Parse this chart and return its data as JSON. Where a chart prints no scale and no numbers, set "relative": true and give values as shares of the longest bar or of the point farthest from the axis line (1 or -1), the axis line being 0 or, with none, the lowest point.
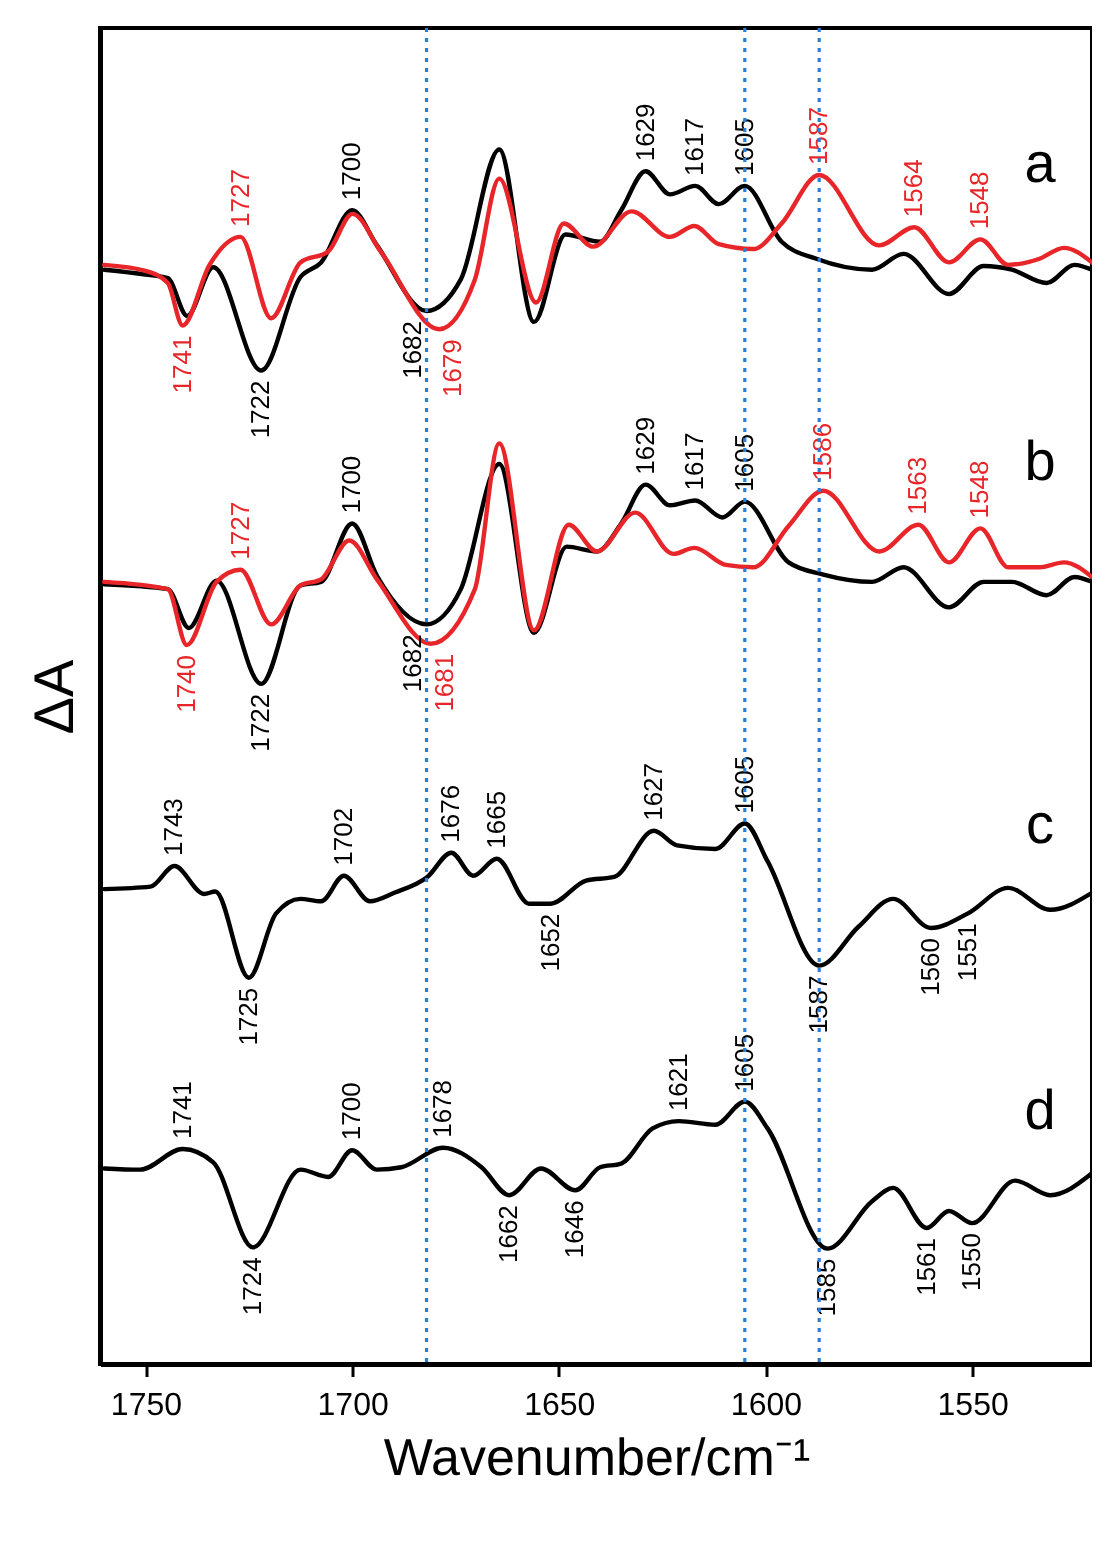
{
  "chart_data": {
    "type": "line",
    "relative": true,
    "xlabel": "Wavenumber/cm⁻¹",
    "ylabel": "ΔA",
    "xlim": [
      1761,
      1521
    ],
    "xticks": [
      1750,
      1700,
      1650,
      1600,
      1550
    ],
    "grid": false,
    "line_style": "solid",
    "series": [
      {
        "color": "#000000",
        "x": [
          1760,
          1750,
          1744.6,
          1739.9,
          1733.6,
          1722,
          1712.5,
          1707.5,
          1700,
          1694,
          1682,
          1673.7,
          1664.4,
          1656,
          1648.4,
          1640,
          1634.9,
          1629,
          1623.1,
          1617,
          1611.3,
          1605,
          1596.1,
          1587.7,
          1574.2,
          1566.6,
          1555.6,
          1547.2,
          1540.4,
          1532,
          1525.2,
          1521
        ],
        "values": [
          0.901,
          0.897,
          0.894,
          0.863,
          0.903,
          0.818,
          0.895,
          0.907,
          0.95,
          0.921,
          0.867,
          0.893,
          1.0,
          0.858,
          0.93,
          0.924,
          0.95,
          0.982,
          0.963,
          0.97,
          0.955,
          0.97,
          0.924,
          0.91,
          0.901,
          0.914,
          0.881,
          0.904,
          0.901,
          0.89,
          0.905,
          0.901
        ]
      },
      {
        "color": "#e8262a",
        "x": [
          1760,
          1750,
          1744.6,
          1741,
          1734.5,
          1727,
          1719.6,
          1712.5,
          1705.8,
          1699.9,
          1693.1,
          1679,
          1670.3,
          1664.4,
          1655.5,
          1648.8,
          1641.7,
          1632.4,
          1623.1,
          1617.2,
          1611.3,
          1602.9,
          1596.1,
          1587,
          1572.5,
          1564,
          1555.6,
          1548,
          1541.3,
          1533.7,
          1527.8,
          1521
        ],
        "values": [
          0.905,
          0.9,
          0.89,
          0.855,
          0.905,
          0.928,
          0.861,
          0.907,
          0.916,
          0.947,
          0.916,
          0.852,
          0.893,
          0.976,
          0.874,
          0.939,
          0.92,
          0.949,
          0.928,
          0.937,
          0.922,
          0.918,
          0.939,
          0.979,
          0.921,
          0.936,
          0.907,
          0.926,
          0.905,
          0.91,
          0.919,
          0.907
        ]
      },
      {
        "color": "#000000",
        "x": [
          1760,
          1744.6,
          1739.5,
          1732.8,
          1722,
          1712.5,
          1707.5,
          1700,
          1694,
          1682,
          1673.7,
          1664.4,
          1656,
          1648.1,
          1640.8,
          1634.9,
          1629,
          1623.1,
          1617,
          1610.4,
          1605,
          1594.4,
          1586,
          1574.2,
          1566.6,
          1555.6,
          1547.2,
          1540.4,
          1532,
          1525.2,
          1521
        ],
        "values": [
          0.642,
          0.638,
          0.606,
          0.645,
          0.56,
          0.641,
          0.644,
          0.692,
          0.649,
          0.609,
          0.638,
          0.741,
          0.602,
          0.673,
          0.669,
          0.692,
          0.724,
          0.707,
          0.711,
          0.697,
          0.71,
          0.66,
          0.65,
          0.644,
          0.656,
          0.623,
          0.644,
          0.644,
          0.633,
          0.648,
          0.644
        ]
      },
      {
        "color": "#e8262a",
        "x": [
          1760,
          1744.6,
          1740,
          1732.8,
          1727,
          1719.6,
          1712.5,
          1707.5,
          1700.7,
          1694,
          1681,
          1670.3,
          1664.4,
          1656,
          1647.6,
          1640.8,
          1631.5,
          1622.3,
          1617.2,
          1609.6,
          1602.9,
          1594.4,
          1586,
          1572.5,
          1563,
          1555.6,
          1548,
          1541.3,
          1533.7,
          1527.8,
          1521
        ],
        "values": [
          0.644,
          0.638,
          0.592,
          0.644,
          0.654,
          0.609,
          0.641,
          0.646,
          0.678,
          0.646,
          0.593,
          0.638,
          0.758,
          0.604,
          0.691,
          0.669,
          0.701,
          0.667,
          0.672,
          0.658,
          0.656,
          0.69,
          0.719,
          0.669,
          0.691,
          0.66,
          0.688,
          0.656,
          0.656,
          0.66,
          0.648
        ]
      },
      {
        "color": "#000000",
        "x": [
          1760,
          1748.8,
          1743,
          1735.8,
          1733.1,
          1725,
          1718.4,
          1712.5,
          1707.5,
          1702,
          1695.7,
          1689.8,
          1681.8,
          1676,
          1670.7,
          1665,
          1657.2,
          1652,
          1643.4,
          1636.6,
          1627,
          1621.4,
          1612.1,
          1605,
          1599.5,
          1587,
          1577.5,
          1569.1,
          1560,
          1551,
          1541.3,
          1531.1,
          1521
        ],
        "values": [
          0.391,
          0.393,
          0.41,
          0.387,
          0.389,
          0.318,
          0.371,
          0.383,
          0.381,
          0.402,
          0.381,
          0.388,
          0.401,
          0.421,
          0.402,
          0.416,
          0.379,
          0.379,
          0.398,
          0.401,
          0.439,
          0.427,
          0.424,
          0.445,
          0.414,
          0.328,
          0.36,
          0.383,
          0.359,
          0.371,
          0.392,
          0.374,
          0.388
        ]
      },
      {
        "color": "#000000",
        "x": [
          1760,
          1751.3,
          1741,
          1733.6,
          1724,
          1712.5,
          1705.8,
          1700,
          1694,
          1688.1,
          1678,
          1668.7,
          1662,
          1654.3,
          1646,
          1640,
          1634.9,
          1627.3,
          1621,
          1612.1,
          1605,
          1599.5,
          1585,
          1574.2,
          1569.1,
          1561,
          1555.6,
          1550,
          1539.6,
          1531.1,
          1521
        ],
        "values": [
          0.161,
          0.16,
          0.177,
          0.166,
          0.096,
          0.16,
          0.154,
          0.176,
          0.16,
          0.162,
          0.178,
          0.162,
          0.139,
          0.161,
          0.143,
          0.162,
          0.165,
          0.194,
          0.2,
          0.197,
          0.216,
          0.194,
          0.095,
          0.134,
          0.145,
          0.112,
          0.126,
          0.116,
          0.151,
          0.139,
          0.157
        ]
      }
    ],
    "ref_lines": [
      {
        "axis": "x",
        "value": 1682,
        "color": "#2a7fd4",
        "line_style": "dotted"
      },
      {
        "axis": "x",
        "value": 1605,
        "color": "#2a7fd4",
        "line_style": "dotted"
      },
      {
        "axis": "x",
        "value": 1587,
        "color": "#2a7fd4",
        "line_style": "dotted"
      }
    ],
    "annotations": [
      "a",
      "b",
      "c",
      "d",
      {
        "text": "1722",
        "x": 1722,
        "y": 0.818
      },
      {
        "text": "1700",
        "x": 1700,
        "y": 0.95
      },
      {
        "text": "1682",
        "x": 1682,
        "y": 0.867
      },
      {
        "text": "1629",
        "x": 1629,
        "y": 0.982
      },
      {
        "text": "1617",
        "x": 1617,
        "y": 0.97
      },
      {
        "text": "1605",
        "x": 1605,
        "y": 0.97
      },
      {
        "text": "1741",
        "x": 1741,
        "y": 0.855
      },
      {
        "text": "1727",
        "x": 1727,
        "y": 0.928
      },
      {
        "text": "1679",
        "x": 1679,
        "y": 0.852
      },
      {
        "text": "1587",
        "x": 1587,
        "y": 0.979
      },
      {
        "text": "1564",
        "x": 1564,
        "y": 0.936
      },
      {
        "text": "1548",
        "x": 1548,
        "y": 0.926
      },
      {
        "text": "1722",
        "x": 1722,
        "y": 0.56
      },
      {
        "text": "1700",
        "x": 1700,
        "y": 0.692
      },
      {
        "text": "1682",
        "x": 1682,
        "y": 0.609
      },
      {
        "text": "1629",
        "x": 1629,
        "y": 0.724
      },
      {
        "text": "1617",
        "x": 1617,
        "y": 0.711
      },
      {
        "text": "1605",
        "x": 1605,
        "y": 0.71
      },
      {
        "text": "1740",
        "x": 1740,
        "y": 0.592
      },
      {
        "text": "1727",
        "x": 1727,
        "y": 0.654
      },
      {
        "text": "1681",
        "x": 1681,
        "y": 0.593
      },
      {
        "text": "1586",
        "x": 1586,
        "y": 0.719
      },
      {
        "text": "1563",
        "x": 1563,
        "y": 0.691
      },
      {
        "text": "1548",
        "x": 1548,
        "y": 0.688
      },
      {
        "text": "1743",
        "x": 1743,
        "y": 0.41
      },
      {
        "text": "1725",
        "x": 1725,
        "y": 0.318
      },
      {
        "text": "1702",
        "x": 1702,
        "y": 0.402
      },
      {
        "text": "1676",
        "x": 1676,
        "y": 0.421
      },
      {
        "text": "1665",
        "x": 1665,
        "y": 0.416
      },
      {
        "text": "1652",
        "x": 1652,
        "y": 0.379
      },
      {
        "text": "1627",
        "x": 1627,
        "y": 0.439
      },
      {
        "text": "1605",
        "x": 1605,
        "y": 0.445
      },
      {
        "text": "1587",
        "x": 1587,
        "y": 0.328
      },
      {
        "text": "1560",
        "x": 1560,
        "y": 0.359
      },
      {
        "text": "1551",
        "x": 1551,
        "y": 0.371
      },
      {
        "text": "1741",
        "x": 1741,
        "y": 0.177
      },
      {
        "text": "1724",
        "x": 1724,
        "y": 0.096
      },
      {
        "text": "1700",
        "x": 1700,
        "y": 0.176
      },
      {
        "text": "1678",
        "x": 1678,
        "y": 0.178
      },
      {
        "text": "1662",
        "x": 1662,
        "y": 0.139
      },
      {
        "text": "1646",
        "x": 1646,
        "y": 0.143
      },
      {
        "text": "1621",
        "x": 1621,
        "y": 0.2
      },
      {
        "text": "1605",
        "x": 1605,
        "y": 0.216
      },
      {
        "text": "1585",
        "x": 1585,
        "y": 0.095
      },
      {
        "text": "1561",
        "x": 1561,
        "y": 0.112
      },
      {
        "text": "1550",
        "x": 1550,
        "y": 0.116
      }
    ]
  }
}
